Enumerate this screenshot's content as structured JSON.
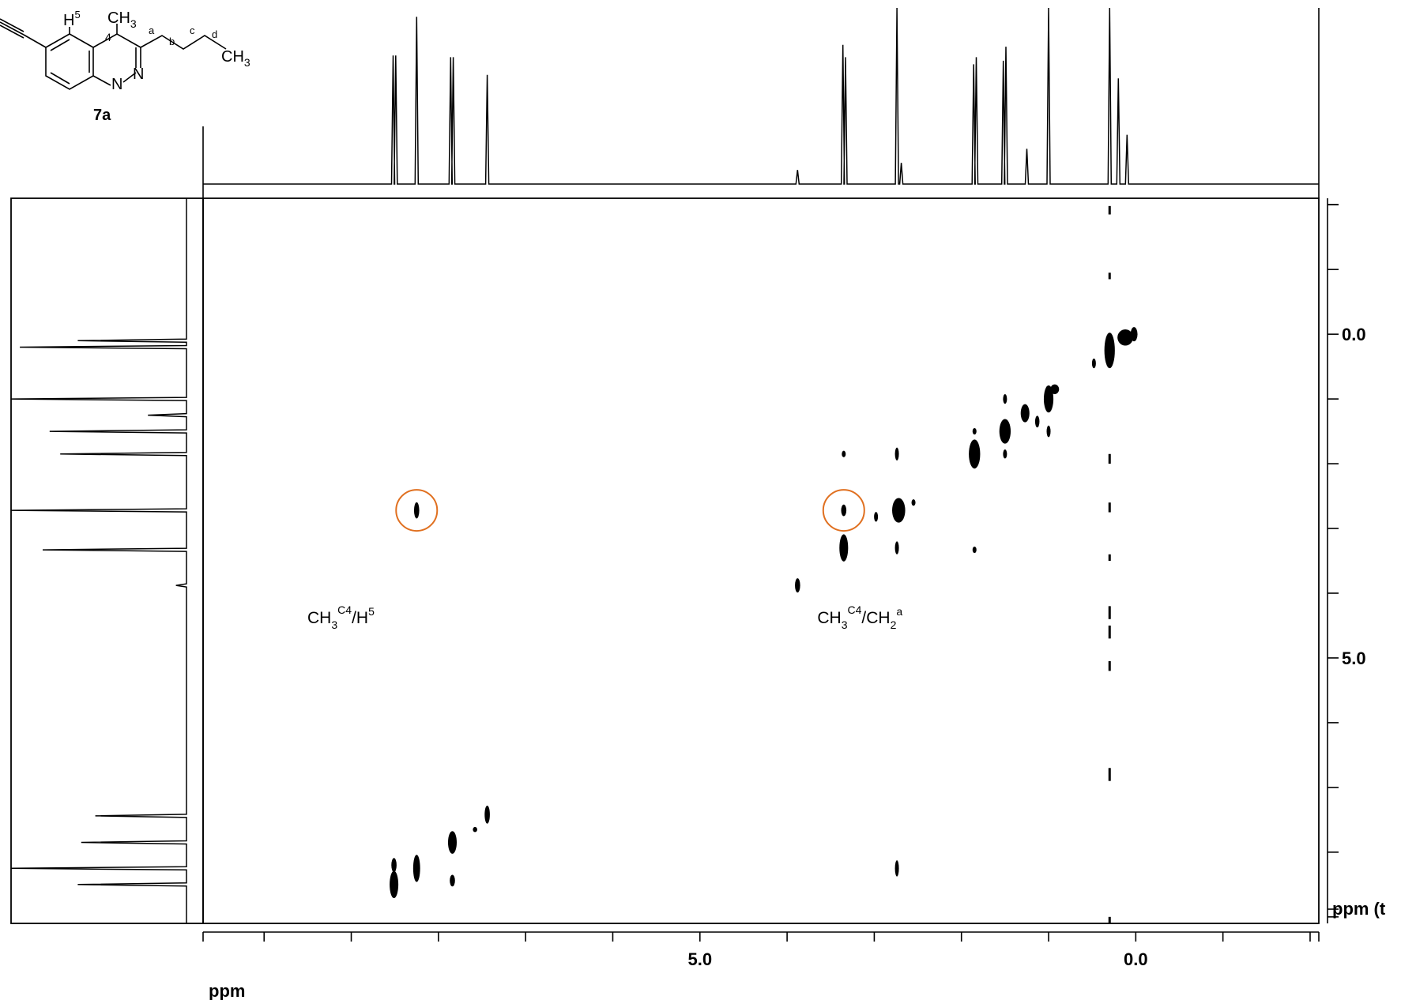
{
  "structure": {
    "compound_label": "7a",
    "atoms": {
      "h5_base": "H",
      "h5_sup": "5",
      "ch3_c": "CH",
      "ch3_sub": "3",
      "c4": "4",
      "chain_a": "a",
      "chain_b": "b",
      "chain_c": "c",
      "chain_d": "d",
      "ch3d_c": "CH",
      "ch3d_sub": "3",
      "n1": "N",
      "n2": "N"
    }
  },
  "annotations": [
    {
      "base": "CH",
      "sub1": "3",
      "sup1": "C4",
      "slash": "/",
      "base2": "H",
      "sup2": "5",
      "x": 9.05,
      "y": 5.1
    },
    {
      "base": "CH",
      "sub1": "3",
      "sup1": "C4",
      "slash": "/",
      "base2": "CH",
      "sub2": "2",
      "sup2": "a",
      "x": 3.2,
      "y": 5.1
    }
  ],
  "chart_data": {
    "type": "scatter",
    "subtype": "2D NMR correlation contour plot (COSY/NOESY-style)",
    "x_axis": {
      "label": "ppm",
      "ticks": [
        "5.0",
        "0.0"
      ],
      "tick_values": [
        5.0,
        0.0
      ],
      "range": [
        10.7,
        -2.1
      ],
      "minor_step": 1.0
    },
    "y_axis": {
      "label": "ppm (t",
      "ticks": [
        "0.0",
        "5.0"
      ],
      "tick_values": [
        0.0,
        5.0
      ],
      "range": [
        -2.1,
        9.1
      ],
      "minor_step": 1.0
    },
    "top_projection_peaks": [
      {
        "x": 8.52,
        "height": 0.73
      },
      {
        "x": 8.49,
        "height": 0.73
      },
      {
        "x": 8.25,
        "height": 0.95
      },
      {
        "x": 7.86,
        "height": 0.72
      },
      {
        "x": 7.83,
        "height": 0.72
      },
      {
        "x": 7.44,
        "height": 0.62
      },
      {
        "x": 3.88,
        "height": 0.08
      },
      {
        "x": 3.36,
        "height": 0.79
      },
      {
        "x": 3.33,
        "height": 0.72
      },
      {
        "x": 2.74,
        "height": 1.0
      },
      {
        "x": 2.69,
        "height": 0.12
      },
      {
        "x": 1.86,
        "height": 0.68
      },
      {
        "x": 1.83,
        "height": 0.72
      },
      {
        "x": 1.52,
        "height": 0.7
      },
      {
        "x": 1.49,
        "height": 0.78
      },
      {
        "x": 1.25,
        "height": 0.2
      },
      {
        "x": 1.0,
        "height": 1.0
      },
      {
        "x": 0.3,
        "height": 1.0
      },
      {
        "x": 0.2,
        "height": 0.6
      },
      {
        "x": 0.1,
        "height": 0.28
      }
    ],
    "left_projection_peaks": [
      {
        "y": 0.1,
        "height": 0.62
      },
      {
        "y": 0.2,
        "height": 0.95
      },
      {
        "y": 1.0,
        "height": 1.0
      },
      {
        "y": 1.25,
        "height": 0.22
      },
      {
        "y": 1.5,
        "height": 0.78
      },
      {
        "y": 1.85,
        "height": 0.72
      },
      {
        "y": 2.72,
        "height": 1.0
      },
      {
        "y": 3.33,
        "height": 0.82
      },
      {
        "y": 3.88,
        "height": 0.06
      },
      {
        "y": 7.44,
        "height": 0.52
      },
      {
        "y": 7.85,
        "height": 0.6
      },
      {
        "y": 8.25,
        "height": 1.0
      },
      {
        "y": 8.5,
        "height": 0.62
      }
    ],
    "cross_peaks": [
      {
        "x": 0.3,
        "y": 0.25,
        "w": 0.12,
        "h": 0.55
      },
      {
        "x": 0.12,
        "y": 0.05,
        "w": 0.18,
        "h": 0.25
      },
      {
        "x": 0.02,
        "y": 0.0,
        "w": 0.08,
        "h": 0.22
      },
      {
        "x": 0.48,
        "y": 0.45,
        "w": 0.03,
        "h": 0.15
      },
      {
        "x": 1.0,
        "y": 1.0,
        "w": 0.11,
        "h": 0.42
      },
      {
        "x": 0.93,
        "y": 0.85,
        "w": 0.1,
        "h": 0.15
      },
      {
        "x": 1.27,
        "y": 1.22,
        "w": 0.1,
        "h": 0.28
      },
      {
        "x": 1.13,
        "y": 1.35,
        "w": 0.05,
        "h": 0.18
      },
      {
        "x": 1.5,
        "y": 1.5,
        "w": 0.13,
        "h": 0.38
      },
      {
        "x": 1.85,
        "y": 1.85,
        "w": 0.13,
        "h": 0.45
      },
      {
        "x": 2.72,
        "y": 2.72,
        "w": 0.15,
        "h": 0.38
      },
      {
        "x": 2.55,
        "y": 2.6,
        "w": 0.04,
        "h": 0.1
      },
      {
        "x": 2.98,
        "y": 2.82,
        "w": 0.03,
        "h": 0.15
      },
      {
        "x": 3.35,
        "y": 3.3,
        "w": 0.1,
        "h": 0.42
      },
      {
        "x": 3.35,
        "y": 2.72,
        "w": 0.06,
        "h": 0.18
      },
      {
        "x": 3.35,
        "y": 1.85,
        "w": 0.04,
        "h": 0.1
      },
      {
        "x": 3.88,
        "y": 3.88,
        "w": 0.06,
        "h": 0.22
      },
      {
        "x": 2.74,
        "y": 1.85,
        "w": 0.03,
        "h": 0.2
      },
      {
        "x": 2.74,
        "y": 3.3,
        "w": 0.03,
        "h": 0.2
      },
      {
        "x": 1.85,
        "y": 3.33,
        "w": 0.04,
        "h": 0.1
      },
      {
        "x": 1.5,
        "y": 1.85,
        "w": 0.03,
        "h": 0.14
      },
      {
        "x": 1.85,
        "y": 1.5,
        "w": 0.03,
        "h": 0.1
      },
      {
        "x": 1.0,
        "y": 1.5,
        "w": 0.04,
        "h": 0.18
      },
      {
        "x": 1.5,
        "y": 1.0,
        "w": 0.04,
        "h": 0.15
      },
      {
        "x": 8.25,
        "y": 2.72,
        "w": 0.06,
        "h": 0.25
      },
      {
        "x": 8.51,
        "y": 8.2,
        "w": 0.06,
        "h": 0.22
      },
      {
        "x": 8.51,
        "y": 8.5,
        "w": 0.1,
        "h": 0.42
      },
      {
        "x": 8.25,
        "y": 8.25,
        "w": 0.08,
        "h": 0.42
      },
      {
        "x": 7.84,
        "y": 7.85,
        "w": 0.1,
        "h": 0.35
      },
      {
        "x": 7.84,
        "y": 8.44,
        "w": 0.06,
        "h": 0.18
      },
      {
        "x": 7.58,
        "y": 7.65,
        "w": 0.05,
        "h": 0.08
      },
      {
        "x": 7.44,
        "y": 7.42,
        "w": 0.06,
        "h": 0.28
      },
      {
        "x": 2.74,
        "y": 8.25,
        "w": 0.04,
        "h": 0.25
      }
    ],
    "t1_noise_column": {
      "x": 0.3,
      "segments": [
        [
          -1.98,
          -1.85
        ],
        [
          -0.95,
          -0.85
        ],
        [
          1.85,
          2.0
        ],
        [
          2.6,
          2.75
        ],
        [
          3.4,
          3.5
        ],
        [
          4.2,
          4.4
        ],
        [
          4.5,
          4.7
        ],
        [
          5.05,
          5.2
        ],
        [
          6.7,
          6.9
        ],
        [
          9.0,
          9.1
        ]
      ]
    },
    "highlight_circles": [
      {
        "x": 8.25,
        "y": 2.72
      },
      {
        "x": 3.35,
        "y": 2.72
      }
    ],
    "grid": false,
    "legend": "none"
  }
}
